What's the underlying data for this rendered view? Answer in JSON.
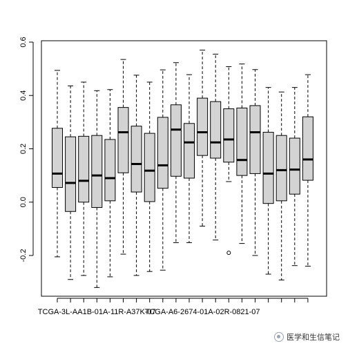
{
  "chart_data": {
    "type": "boxplot",
    "title": "",
    "xlabel": "",
    "ylabel": "",
    "ylim": [
      -0.35,
      0.6
    ],
    "yticks": [
      -0.2,
      0.0,
      0.2,
      0.4,
      0.6
    ],
    "ytick_labels": [
      "-0.2",
      "0.0",
      "0.2",
      "0.4",
      "0.6"
    ],
    "xtick_labels_shown": [
      {
        "box_index": 3,
        "label": "TCGA-3L-AA1B-01A-11R-A37K-07"
      },
      {
        "box_index": 11,
        "label": "TCGA-A6-2674-01A-02R-0821-07"
      }
    ],
    "box_fill": "#d3d3d3",
    "grid": false,
    "boxes": [
      {
        "min": -0.205,
        "q1": 0.055,
        "median": 0.107,
        "q3": 0.277,
        "max": 0.494,
        "outliers": []
      },
      {
        "min": -0.29,
        "q1": -0.035,
        "median": 0.072,
        "q3": 0.245,
        "max": 0.436,
        "outliers": []
      },
      {
        "min": -0.275,
        "q1": 0.0,
        "median": 0.08,
        "q3": 0.247,
        "max": 0.45,
        "outliers": []
      },
      {
        "min": -0.32,
        "q1": -0.02,
        "median": 0.1,
        "q3": 0.25,
        "max": 0.418,
        "outliers": []
      },
      {
        "min": -0.28,
        "q1": 0.005,
        "median": 0.09,
        "q3": 0.235,
        "max": 0.422,
        "outliers": []
      },
      {
        "min": -0.195,
        "q1": 0.11,
        "median": 0.262,
        "q3": 0.355,
        "max": 0.535,
        "outliers": []
      },
      {
        "min": -0.275,
        "q1": 0.038,
        "median": 0.143,
        "q3": 0.285,
        "max": 0.476,
        "outliers": []
      },
      {
        "min": -0.26,
        "q1": 0.002,
        "median": 0.118,
        "q3": 0.258,
        "max": 0.45,
        "outliers": []
      },
      {
        "min": -0.255,
        "q1": 0.052,
        "median": 0.138,
        "q3": 0.318,
        "max": 0.496,
        "outliers": []
      },
      {
        "min": -0.152,
        "q1": 0.097,
        "median": 0.272,
        "q3": 0.365,
        "max": 0.523,
        "outliers": []
      },
      {
        "min": -0.152,
        "q1": 0.09,
        "median": 0.224,
        "q3": 0.295,
        "max": 0.478,
        "outliers": []
      },
      {
        "min": -0.09,
        "q1": 0.175,
        "median": 0.262,
        "q3": 0.39,
        "max": 0.57,
        "outliers": []
      },
      {
        "min": -0.142,
        "q1": 0.165,
        "median": 0.224,
        "q3": 0.377,
        "max": 0.555,
        "outliers": []
      },
      {
        "min": 0.077,
        "q1": 0.15,
        "median": 0.235,
        "q3": 0.35,
        "max": 0.508,
        "outliers": [
          -0.19
        ]
      },
      {
        "min": -0.155,
        "q1": 0.1,
        "median": 0.158,
        "q3": 0.353,
        "max": 0.518,
        "outliers": []
      },
      {
        "min": -0.2,
        "q1": 0.107,
        "median": 0.262,
        "q3": 0.362,
        "max": 0.497,
        "outliers": []
      },
      {
        "min": -0.27,
        "q1": -0.005,
        "median": 0.107,
        "q3": 0.262,
        "max": 0.43,
        "outliers": []
      },
      {
        "min": -0.292,
        "q1": 0.005,
        "median": 0.12,
        "q3": 0.25,
        "max": 0.413,
        "outliers": []
      },
      {
        "min": -0.238,
        "q1": 0.03,
        "median": 0.122,
        "q3": 0.24,
        "max": 0.43,
        "outliers": []
      },
      {
        "min": -0.24,
        "q1": 0.082,
        "median": 0.16,
        "q3": 0.32,
        "max": 0.478,
        "outliers": []
      }
    ]
  },
  "watermark": {
    "text": "医学和生信笔记",
    "icon": "wechat-like-icon"
  }
}
